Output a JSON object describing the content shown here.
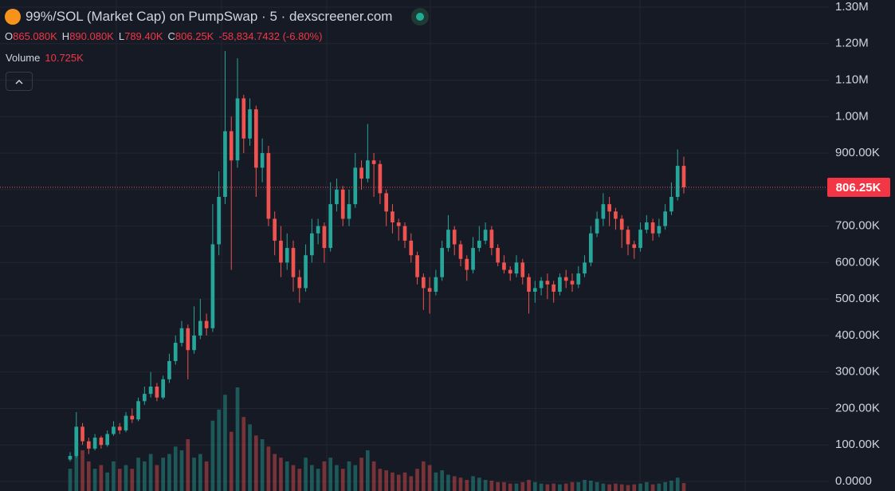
{
  "chart_data": {
    "type": "candlestick",
    "title": "99%/SOL (Market Cap) on PumpSwap · 5 · dexscreener.com",
    "ohlc_legend": [
      {
        "key": "O",
        "value": "865.080K"
      },
      {
        "key": "H",
        "value": "890.080K"
      },
      {
        "key": "L",
        "value": "789.40K"
      },
      {
        "key": "C",
        "value": "806.25K"
      }
    ],
    "change": "-58,834.7432 (-6.80%)",
    "volume_legend": {
      "label": "Volume",
      "value": "10.725K"
    },
    "last_price_label": "806.25K",
    "up_color": "#26a69a",
    "down_color": "#ef5350",
    "ylim": [
      0,
      1300000
    ],
    "yticks": [
      {
        "value": 0,
        "label": "0.0000"
      },
      {
        "value": 100000,
        "label": "100.00K"
      },
      {
        "value": 200000,
        "label": "200.00K"
      },
      {
        "value": 300000,
        "label": "300.00K"
      },
      {
        "value": 400000,
        "label": "400.00K"
      },
      {
        "value": 500000,
        "label": "500.00K"
      },
      {
        "value": 600000,
        "label": "600.00K"
      },
      {
        "value": 700000,
        "label": "700.00K"
      },
      {
        "value": 800000,
        "label": "800.00K"
      },
      {
        "value": 900000,
        "label": "900.00K"
      },
      {
        "value": 1000000,
        "label": "1.00M"
      },
      {
        "value": 1100000,
        "label": "1.10M"
      },
      {
        "value": 1200000,
        "label": "1.20M"
      },
      {
        "value": 1300000,
        "label": "1.30M"
      }
    ],
    "grid": true,
    "open": [
      60000,
      70000,
      150000,
      110000,
      90000,
      120000,
      100000,
      130000,
      150000,
      140000,
      180000,
      170000,
      220000,
      240000,
      260000,
      230000,
      280000,
      330000,
      380000,
      420000,
      360000,
      400000,
      440000,
      420000,
      650000,
      780000,
      960000,
      880000,
      1050000,
      940000,
      1020000,
      860000,
      900000,
      720000,
      660000,
      600000,
      640000,
      560000,
      530000,
      620000,
      680000,
      700000,
      640000,
      760000,
      800000,
      720000,
      760000,
      860000,
      830000,
      880000,
      870000,
      790000,
      740000,
      710000,
      700000,
      660000,
      620000,
      560000,
      530000,
      520000,
      560000,
      640000,
      690000,
      650000,
      610000,
      580000,
      640000,
      660000,
      690000,
      640000,
      600000,
      580000,
      570000,
      600000,
      560000,
      520000,
      530000,
      550000,
      540000,
      520000,
      560000,
      550000,
      540000,
      570000,
      600000,
      680000,
      720000,
      760000,
      740000,
      720000,
      690000,
      650000,
      640000,
      690000,
      710000,
      680000,
      700000,
      740000,
      780000,
      865080
    ],
    "high": [
      80000,
      190000,
      160000,
      120000,
      130000,
      125000,
      140000,
      165000,
      160000,
      190000,
      200000,
      230000,
      260000,
      300000,
      270000,
      290000,
      350000,
      400000,
      440000,
      430000,
      480000,
      500000,
      460000,
      760000,
      850000,
      1180000,
      1000000,
      1160000,
      1060000,
      1050000,
      1030000,
      940000,
      920000,
      740000,
      700000,
      680000,
      660000,
      580000,
      650000,
      720000,
      720000,
      710000,
      820000,
      830000,
      810000,
      800000,
      900000,
      880000,
      980000,
      900000,
      880000,
      800000,
      760000,
      720000,
      710000,
      680000,
      630000,
      570000,
      560000,
      580000,
      660000,
      730000,
      700000,
      660000,
      620000,
      670000,
      700000,
      710000,
      700000,
      650000,
      620000,
      590000,
      620000,
      610000,
      570000,
      550000,
      560000,
      570000,
      550000,
      570000,
      580000,
      570000,
      590000,
      620000,
      700000,
      740000,
      790000,
      780000,
      750000,
      730000,
      700000,
      660000,
      710000,
      730000,
      720000,
      720000,
      760000,
      820000,
      910000,
      890080
    ],
    "low": [
      55000,
      65000,
      100000,
      75000,
      85000,
      90000,
      95000,
      125000,
      130000,
      135000,
      160000,
      165000,
      210000,
      230000,
      220000,
      225000,
      270000,
      320000,
      370000,
      280000,
      350000,
      390000,
      400000,
      410000,
      620000,
      760000,
      580000,
      860000,
      900000,
      920000,
      780000,
      820000,
      700000,
      620000,
      560000,
      580000,
      520000,
      490000,
      520000,
      600000,
      650000,
      600000,
      630000,
      740000,
      700000,
      700000,
      750000,
      800000,
      820000,
      780000,
      760000,
      700000,
      680000,
      660000,
      640000,
      600000,
      540000,
      470000,
      460000,
      510000,
      550000,
      630000,
      620000,
      590000,
      550000,
      570000,
      630000,
      650000,
      620000,
      590000,
      570000,
      550000,
      560000,
      540000,
      460000,
      490000,
      510000,
      500000,
      490000,
      510000,
      530000,
      520000,
      530000,
      560000,
      590000,
      670000,
      700000,
      700000,
      690000,
      640000,
      620000,
      610000,
      630000,
      680000,
      660000,
      670000,
      690000,
      730000,
      770000,
      789400
    ],
    "close": [
      70000,
      150000,
      110000,
      90000,
      120000,
      100000,
      130000,
      150000,
      140000,
      180000,
      170000,
      220000,
      240000,
      260000,
      230000,
      280000,
      330000,
      380000,
      420000,
      360000,
      400000,
      440000,
      420000,
      650000,
      780000,
      960000,
      880000,
      1050000,
      940000,
      1020000,
      860000,
      900000,
      720000,
      660000,
      600000,
      640000,
      560000,
      530000,
      620000,
      680000,
      700000,
      640000,
      760000,
      800000,
      720000,
      760000,
      860000,
      830000,
      880000,
      870000,
      790000,
      740000,
      710000,
      700000,
      660000,
      620000,
      560000,
      530000,
      520000,
      560000,
      640000,
      690000,
      650000,
      610000,
      580000,
      640000,
      660000,
      690000,
      640000,
      600000,
      580000,
      570000,
      600000,
      560000,
      520000,
      530000,
      550000,
      540000,
      520000,
      560000,
      550000,
      540000,
      570000,
      600000,
      680000,
      720000,
      760000,
      740000,
      720000,
      690000,
      650000,
      640000,
      690000,
      710000,
      680000,
      700000,
      740000,
      780000,
      865080,
      806250
    ],
    "volume": [
      30000,
      70000,
      55000,
      40000,
      30000,
      35000,
      25000,
      40000,
      30000,
      35000,
      30000,
      45000,
      40000,
      50000,
      35000,
      45000,
      50000,
      60000,
      55000,
      70000,
      45000,
      50000,
      40000,
      95000,
      110000,
      130000,
      80000,
      140000,
      100000,
      90000,
      75000,
      70000,
      60000,
      50000,
      45000,
      40000,
      35000,
      30000,
      45000,
      35000,
      30000,
      40000,
      45000,
      35000,
      30000,
      40000,
      35000,
      45000,
      55000,
      40000,
      30000,
      28000,
      25000,
      22000,
      25000,
      20000,
      30000,
      40000,
      35000,
      25000,
      28000,
      22000,
      20000,
      18000,
      15000,
      20000,
      18000,
      15000,
      14000,
      12000,
      12000,
      10000,
      10000,
      12000,
      15000,
      12000,
      10000,
      9000,
      10000,
      9000,
      10000,
      12000,
      12000,
      15000,
      14000,
      12000,
      10000,
      9000,
      10000,
      9000,
      8000,
      9000,
      10000,
      12000,
      9000,
      10000,
      12000,
      14000,
      18000,
      10725
    ]
  }
}
